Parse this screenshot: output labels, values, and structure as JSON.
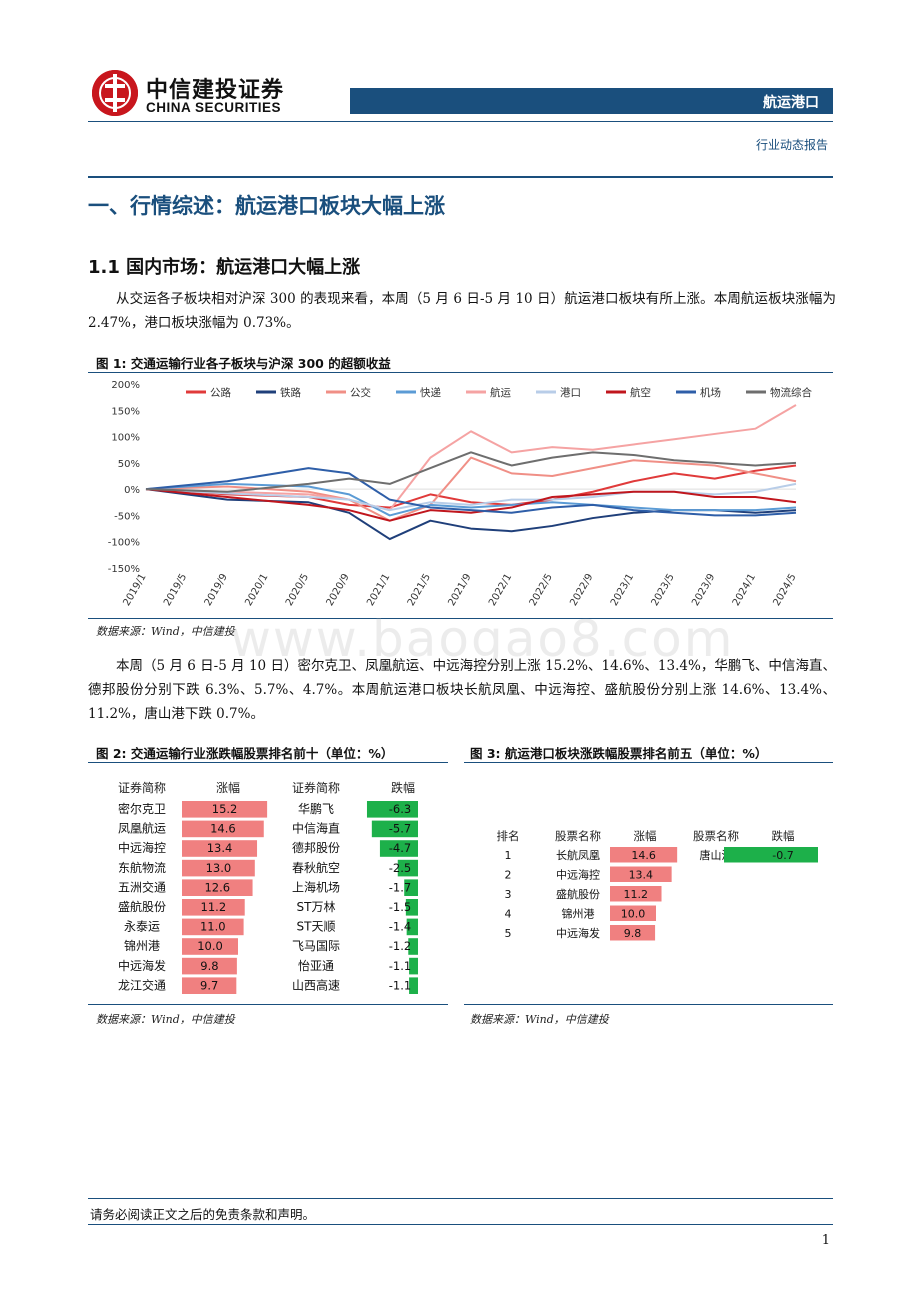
{
  "header": {
    "brand_cn": "中信建投证券",
    "brand_en": "CHINA SECURITIES",
    "sector": "航运港口",
    "report_type": "行业动态报告"
  },
  "section": {
    "h1": "一、行情综述：航运港口板块大幅上涨",
    "h2": "1.1 国内市场：航运港口大幅上涨",
    "para1": "从交运各子板块相对沪深 300 的表现来看，本周（5 月 6 日-5 月 10 日）航运港口板块有所上涨。本周航运板块涨幅为 2.47%，港口板块涨幅为 0.73%。",
    "para2": "本周（5 月 6 日-5 月 10 日）密尔克卫、凤凰航运、中远海控分别上涨 15.2%、14.6%、13.4%，华鹏飞、中信海直、德邦股份分别下跌 6.3%、5.7%、4.7%。本周航运港口板块长航凤凰、中远海控、盛航股份分别上涨 14.6%、13.4%、11.2%，唐山港下跌 0.7%。"
  },
  "figure1": {
    "title": "图 1: 交通运输行业各子板块与沪深 300 的超额收益",
    "source": "数据来源：Wind，中信建投"
  },
  "figure2": {
    "title": "图 2: 交通运输行业涨跌幅股票排名前十（单位：%）",
    "source": "数据来源：Wind，中信建投",
    "headers": {
      "up_name": "证券简称",
      "up_val": "涨幅",
      "down_name": "证券简称",
      "down_val": "跌幅"
    }
  },
  "figure3": {
    "title": "图 3: 航运港口板块涨跌幅股票排名前五（单位：%）",
    "source": "数据来源：Wind，中信建投",
    "headers": {
      "rank": "排名",
      "up_name": "股票名称",
      "up_val": "涨幅",
      "down_name": "股票名称",
      "down_val": "跌幅"
    }
  },
  "watermark": "www.baogao8.com",
  "footer": {
    "disclaimer": "请务必阅读正文之后的免责条款和声明。",
    "page": "1"
  },
  "chart_data": [
    {
      "type": "line",
      "title": "",
      "ylim": [
        -150,
        200
      ],
      "y_ticks": [
        "200%",
        "150%",
        "100%",
        "50%",
        "0%",
        "-50%",
        "-100%",
        "-150%"
      ],
      "x_ticks": [
        "2019/1",
        "2019/5",
        "2019/9",
        "2020/1",
        "2020/5",
        "2020/9",
        "2021/1",
        "2021/5",
        "2021/9",
        "2022/1",
        "2022/5",
        "2022/9",
        "2023/1",
        "2023/5",
        "2023/9",
        "2024/1",
        "2024/5"
      ],
      "legend_position": "top",
      "series": [
        {
          "name": "公路",
          "color": "#e03a3a",
          "x": [
            "2019/1",
            "2019/9",
            "2020/5",
            "2020/9",
            "2021/1",
            "2021/5",
            "2021/9",
            "2022/1",
            "2022/5",
            "2022/9",
            "2023/1",
            "2023/5",
            "2023/9",
            "2024/1",
            "2024/5"
          ],
          "y": [
            0,
            -10,
            -15,
            -30,
            -35,
            -10,
            -25,
            -30,
            -20,
            -5,
            15,
            30,
            20,
            35,
            45
          ]
        },
        {
          "name": "铁路",
          "color": "#1f3f7a",
          "x": [
            "2019/1",
            "2019/9",
            "2020/5",
            "2020/9",
            "2021/1",
            "2021/5",
            "2021/9",
            "2022/1",
            "2022/5",
            "2022/9",
            "2023/1",
            "2023/5",
            "2023/9",
            "2024/1",
            "2024/5"
          ],
          "y": [
            0,
            -20,
            -25,
            -45,
            -95,
            -60,
            -75,
            -80,
            -70,
            -55,
            -45,
            -40,
            -40,
            -45,
            -40
          ]
        },
        {
          "name": "公交",
          "color": "#f08f86",
          "x": [
            "2019/1",
            "2019/9",
            "2020/5",
            "2020/9",
            "2021/1",
            "2021/5",
            "2021/9",
            "2022/1",
            "2022/5",
            "2022/9",
            "2023/1",
            "2023/5",
            "2023/9",
            "2024/1",
            "2024/5"
          ],
          "y": [
            0,
            5,
            -5,
            -20,
            -60,
            -30,
            60,
            30,
            25,
            40,
            55,
            50,
            45,
            30,
            15
          ]
        },
        {
          "name": "快递",
          "color": "#5b9bd5",
          "x": [
            "2019/1",
            "2019/9",
            "2020/5",
            "2020/9",
            "2021/1",
            "2021/5",
            "2021/9",
            "2022/1",
            "2022/5",
            "2022/9",
            "2023/1",
            "2023/5",
            "2023/9",
            "2024/1",
            "2024/5"
          ],
          "y": [
            0,
            10,
            5,
            -10,
            -50,
            -30,
            -35,
            -30,
            -25,
            -30,
            -35,
            -40,
            -40,
            -40,
            -35
          ]
        },
        {
          "name": "航运",
          "color": "#f5a3a3",
          "x": [
            "2019/1",
            "2019/9",
            "2020/5",
            "2020/9",
            "2021/1",
            "2021/5",
            "2021/9",
            "2022/1",
            "2022/5",
            "2022/9",
            "2023/1",
            "2023/5",
            "2023/9",
            "2024/1",
            "2024/5"
          ],
          "y": [
            0,
            -5,
            -10,
            -20,
            -40,
            60,
            110,
            70,
            80,
            75,
            85,
            95,
            105,
            115,
            160
          ]
        },
        {
          "name": "港口",
          "color": "#b8cde8",
          "x": [
            "2019/1",
            "2019/9",
            "2020/5",
            "2020/9",
            "2021/1",
            "2021/5",
            "2021/9",
            "2022/1",
            "2022/5",
            "2022/9",
            "2023/1",
            "2023/5",
            "2023/9",
            "2024/1",
            "2024/5"
          ],
          "y": [
            0,
            -8,
            -15,
            -20,
            -40,
            -25,
            -30,
            -20,
            -20,
            -15,
            -5,
            -5,
            -10,
            -5,
            10
          ]
        },
        {
          "name": "航空",
          "color": "#c0161d",
          "x": [
            "2019/1",
            "2019/9",
            "2020/5",
            "2020/9",
            "2021/1",
            "2021/5",
            "2021/9",
            "2022/1",
            "2022/5",
            "2022/9",
            "2023/1",
            "2023/5",
            "2023/9",
            "2024/1",
            "2024/5"
          ],
          "y": [
            0,
            -15,
            -30,
            -40,
            -60,
            -40,
            -45,
            -35,
            -15,
            -10,
            -5,
            -5,
            -15,
            -15,
            -25
          ]
        },
        {
          "name": "机场",
          "color": "#2e5ea8",
          "x": [
            "2019/1",
            "2019/9",
            "2020/5",
            "2020/9",
            "2021/1",
            "2021/5",
            "2021/9",
            "2022/1",
            "2022/5",
            "2022/9",
            "2023/1",
            "2023/5",
            "2023/9",
            "2024/1",
            "2024/5"
          ],
          "y": [
            0,
            15,
            40,
            30,
            -20,
            -35,
            -40,
            -45,
            -35,
            -30,
            -40,
            -45,
            -50,
            -50,
            -45
          ]
        },
        {
          "name": "物流综合",
          "color": "#6e6e6e",
          "x": [
            "2019/1",
            "2019/9",
            "2020/5",
            "2020/9",
            "2021/1",
            "2021/5",
            "2021/9",
            "2022/1",
            "2022/5",
            "2022/9",
            "2023/1",
            "2023/5",
            "2023/9",
            "2024/1",
            "2024/5"
          ],
          "y": [
            0,
            -5,
            10,
            20,
            10,
            40,
            70,
            45,
            60,
            70,
            65,
            55,
            50,
            45,
            50
          ]
        }
      ]
    },
    {
      "type": "bar",
      "title": "",
      "series": [
        {
          "name": "涨幅",
          "color": "#f08080",
          "categories": [
            "密尔克卫",
            "凤凰航运",
            "中远海控",
            "东航物流",
            "五洲交通",
            "盛航股份",
            "永泰运",
            "锦州港",
            "中远海发",
            "龙江交通"
          ],
          "values": [
            15.2,
            14.6,
            13.4,
            13.0,
            12.6,
            11.2,
            11.0,
            10.0,
            9.8,
            9.7
          ]
        },
        {
          "name": "跌幅",
          "color": "#1db04a",
          "categories": [
            "华鹏飞",
            "中信海直",
            "德邦股份",
            "春秋航空",
            "上海机场",
            "ST万林",
            "ST天顺",
            "飞马国际",
            "怡亚通",
            "山西高速"
          ],
          "values": [
            -6.3,
            -5.7,
            -4.7,
            -2.5,
            -1.7,
            -1.5,
            -1.4,
            -1.2,
            -1.1,
            -1.1
          ]
        }
      ]
    },
    {
      "type": "bar",
      "title": "",
      "ranks": [
        "1",
        "2",
        "3",
        "4",
        "5"
      ],
      "series": [
        {
          "name": "涨幅",
          "color": "#f08080",
          "categories": [
            "长航凤凰",
            "中远海控",
            "盛航股份",
            "锦州港",
            "中远海发"
          ],
          "values": [
            14.6,
            13.4,
            11.2,
            10.0,
            9.8
          ]
        },
        {
          "name": "跌幅",
          "color": "#1db04a",
          "categories": [
            "唐山港"
          ],
          "values": [
            -0.7
          ]
        }
      ]
    }
  ]
}
